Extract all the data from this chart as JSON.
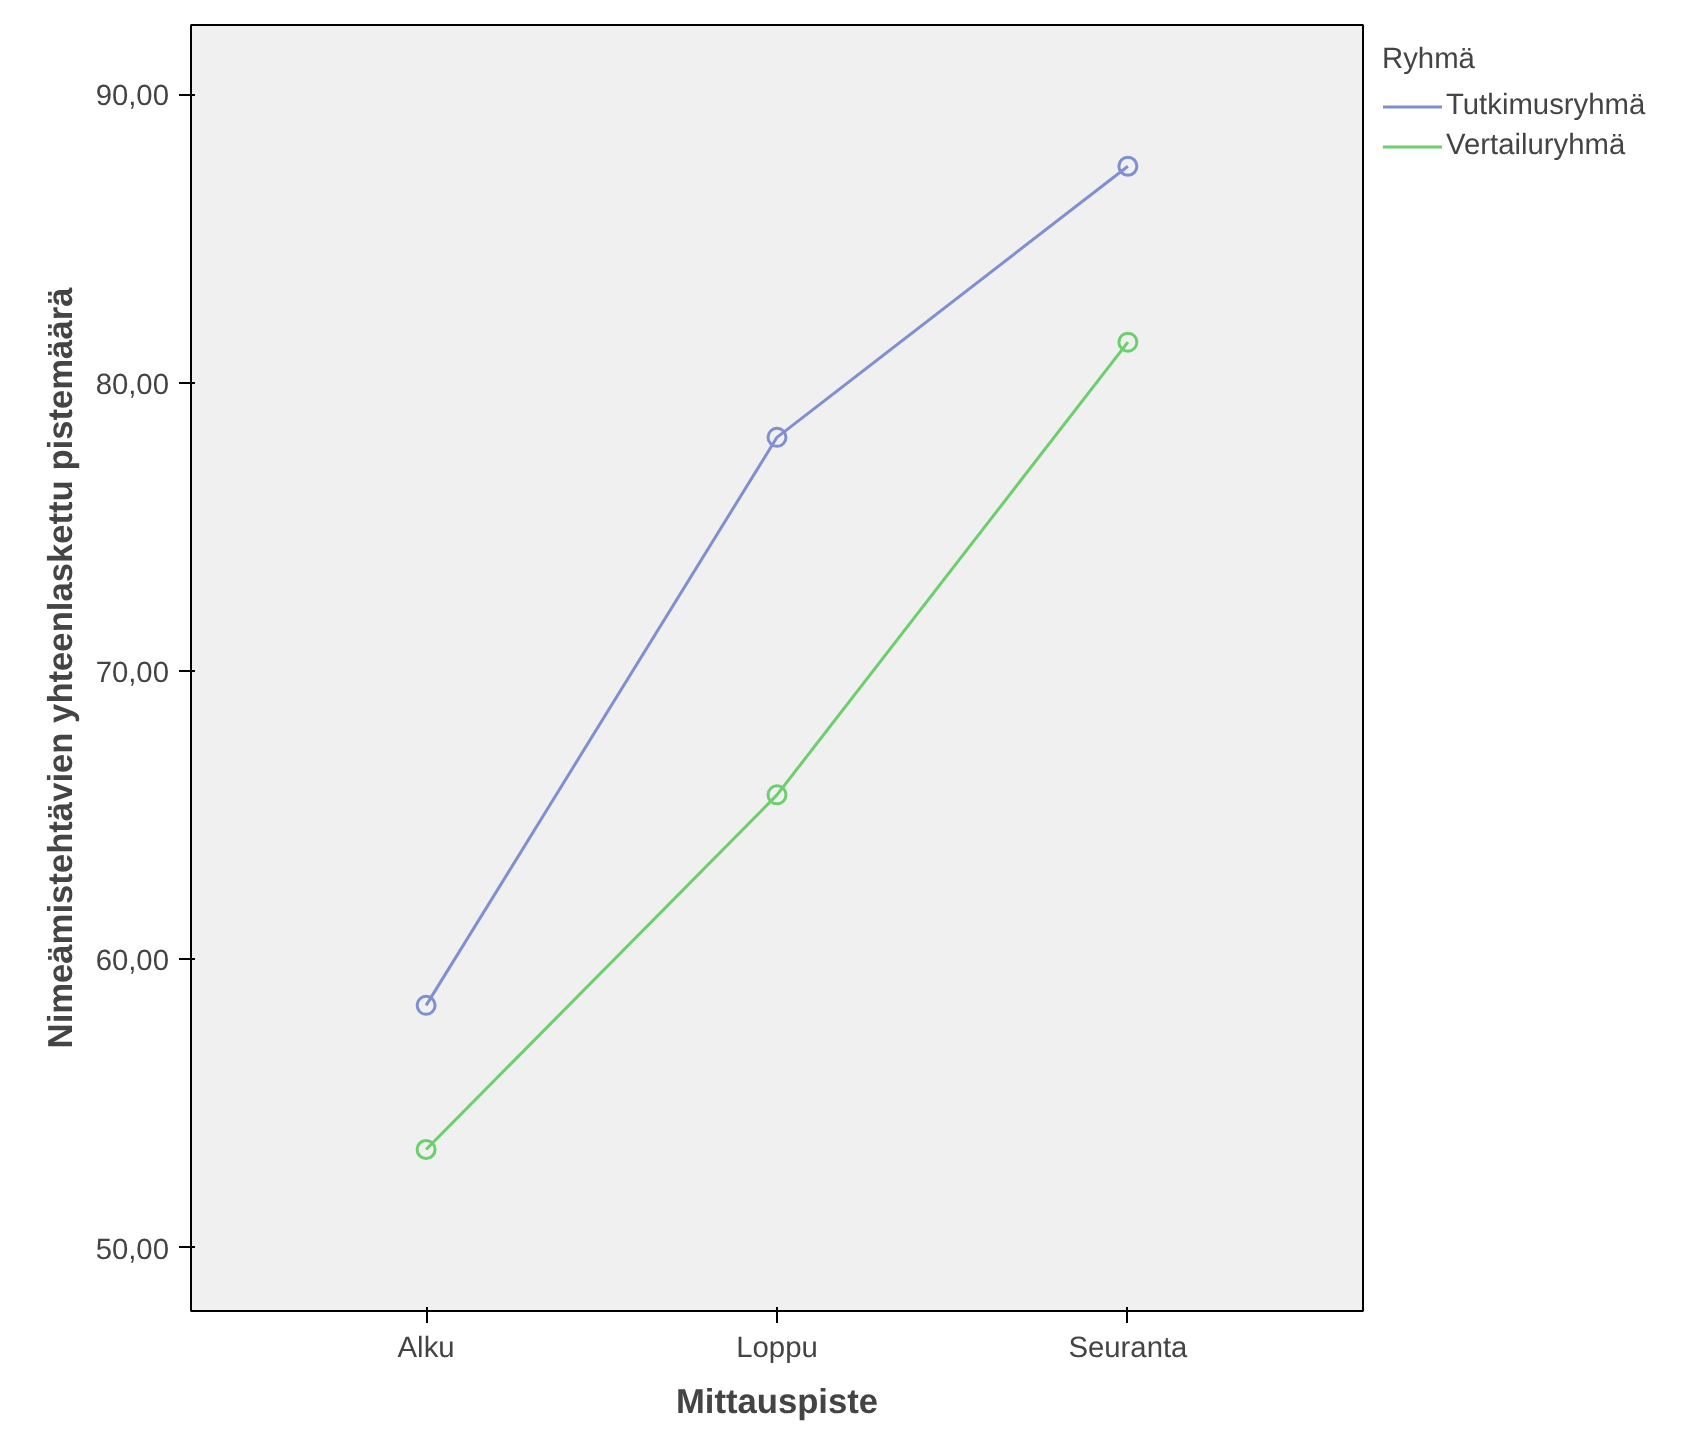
{
  "chart_data": {
    "type": "line",
    "xlabel": "Mittauspiste",
    "ylabel": "Nimeämistehtävien yhteenlaskettu pistemäärä",
    "legend_title": "Ryhmä",
    "categories": [
      "Alku",
      "Loppu",
      "Seuranta"
    ],
    "series": [
      {
        "name": "Tutkimusryhmä",
        "color": "#7f8fd0",
        "values": [
          58.4,
          78.1,
          87.5
        ]
      },
      {
        "name": "Vertailuryhmä",
        "color": "#6ccf6c",
        "values": [
          53.4,
          65.7,
          81.4
        ]
      }
    ],
    "ylim": [
      47.8,
      92.4
    ],
    "yticks": [
      {
        "value": 50,
        "label": "50,00"
      },
      {
        "value": 60,
        "label": "60,00"
      },
      {
        "value": 70,
        "label": "70,00"
      },
      {
        "value": 80,
        "label": "80,00"
      },
      {
        "value": 90,
        "label": "90,00"
      }
    ],
    "grid": false,
    "legend": "top right",
    "marker": "circle",
    "line_style": "solid"
  }
}
